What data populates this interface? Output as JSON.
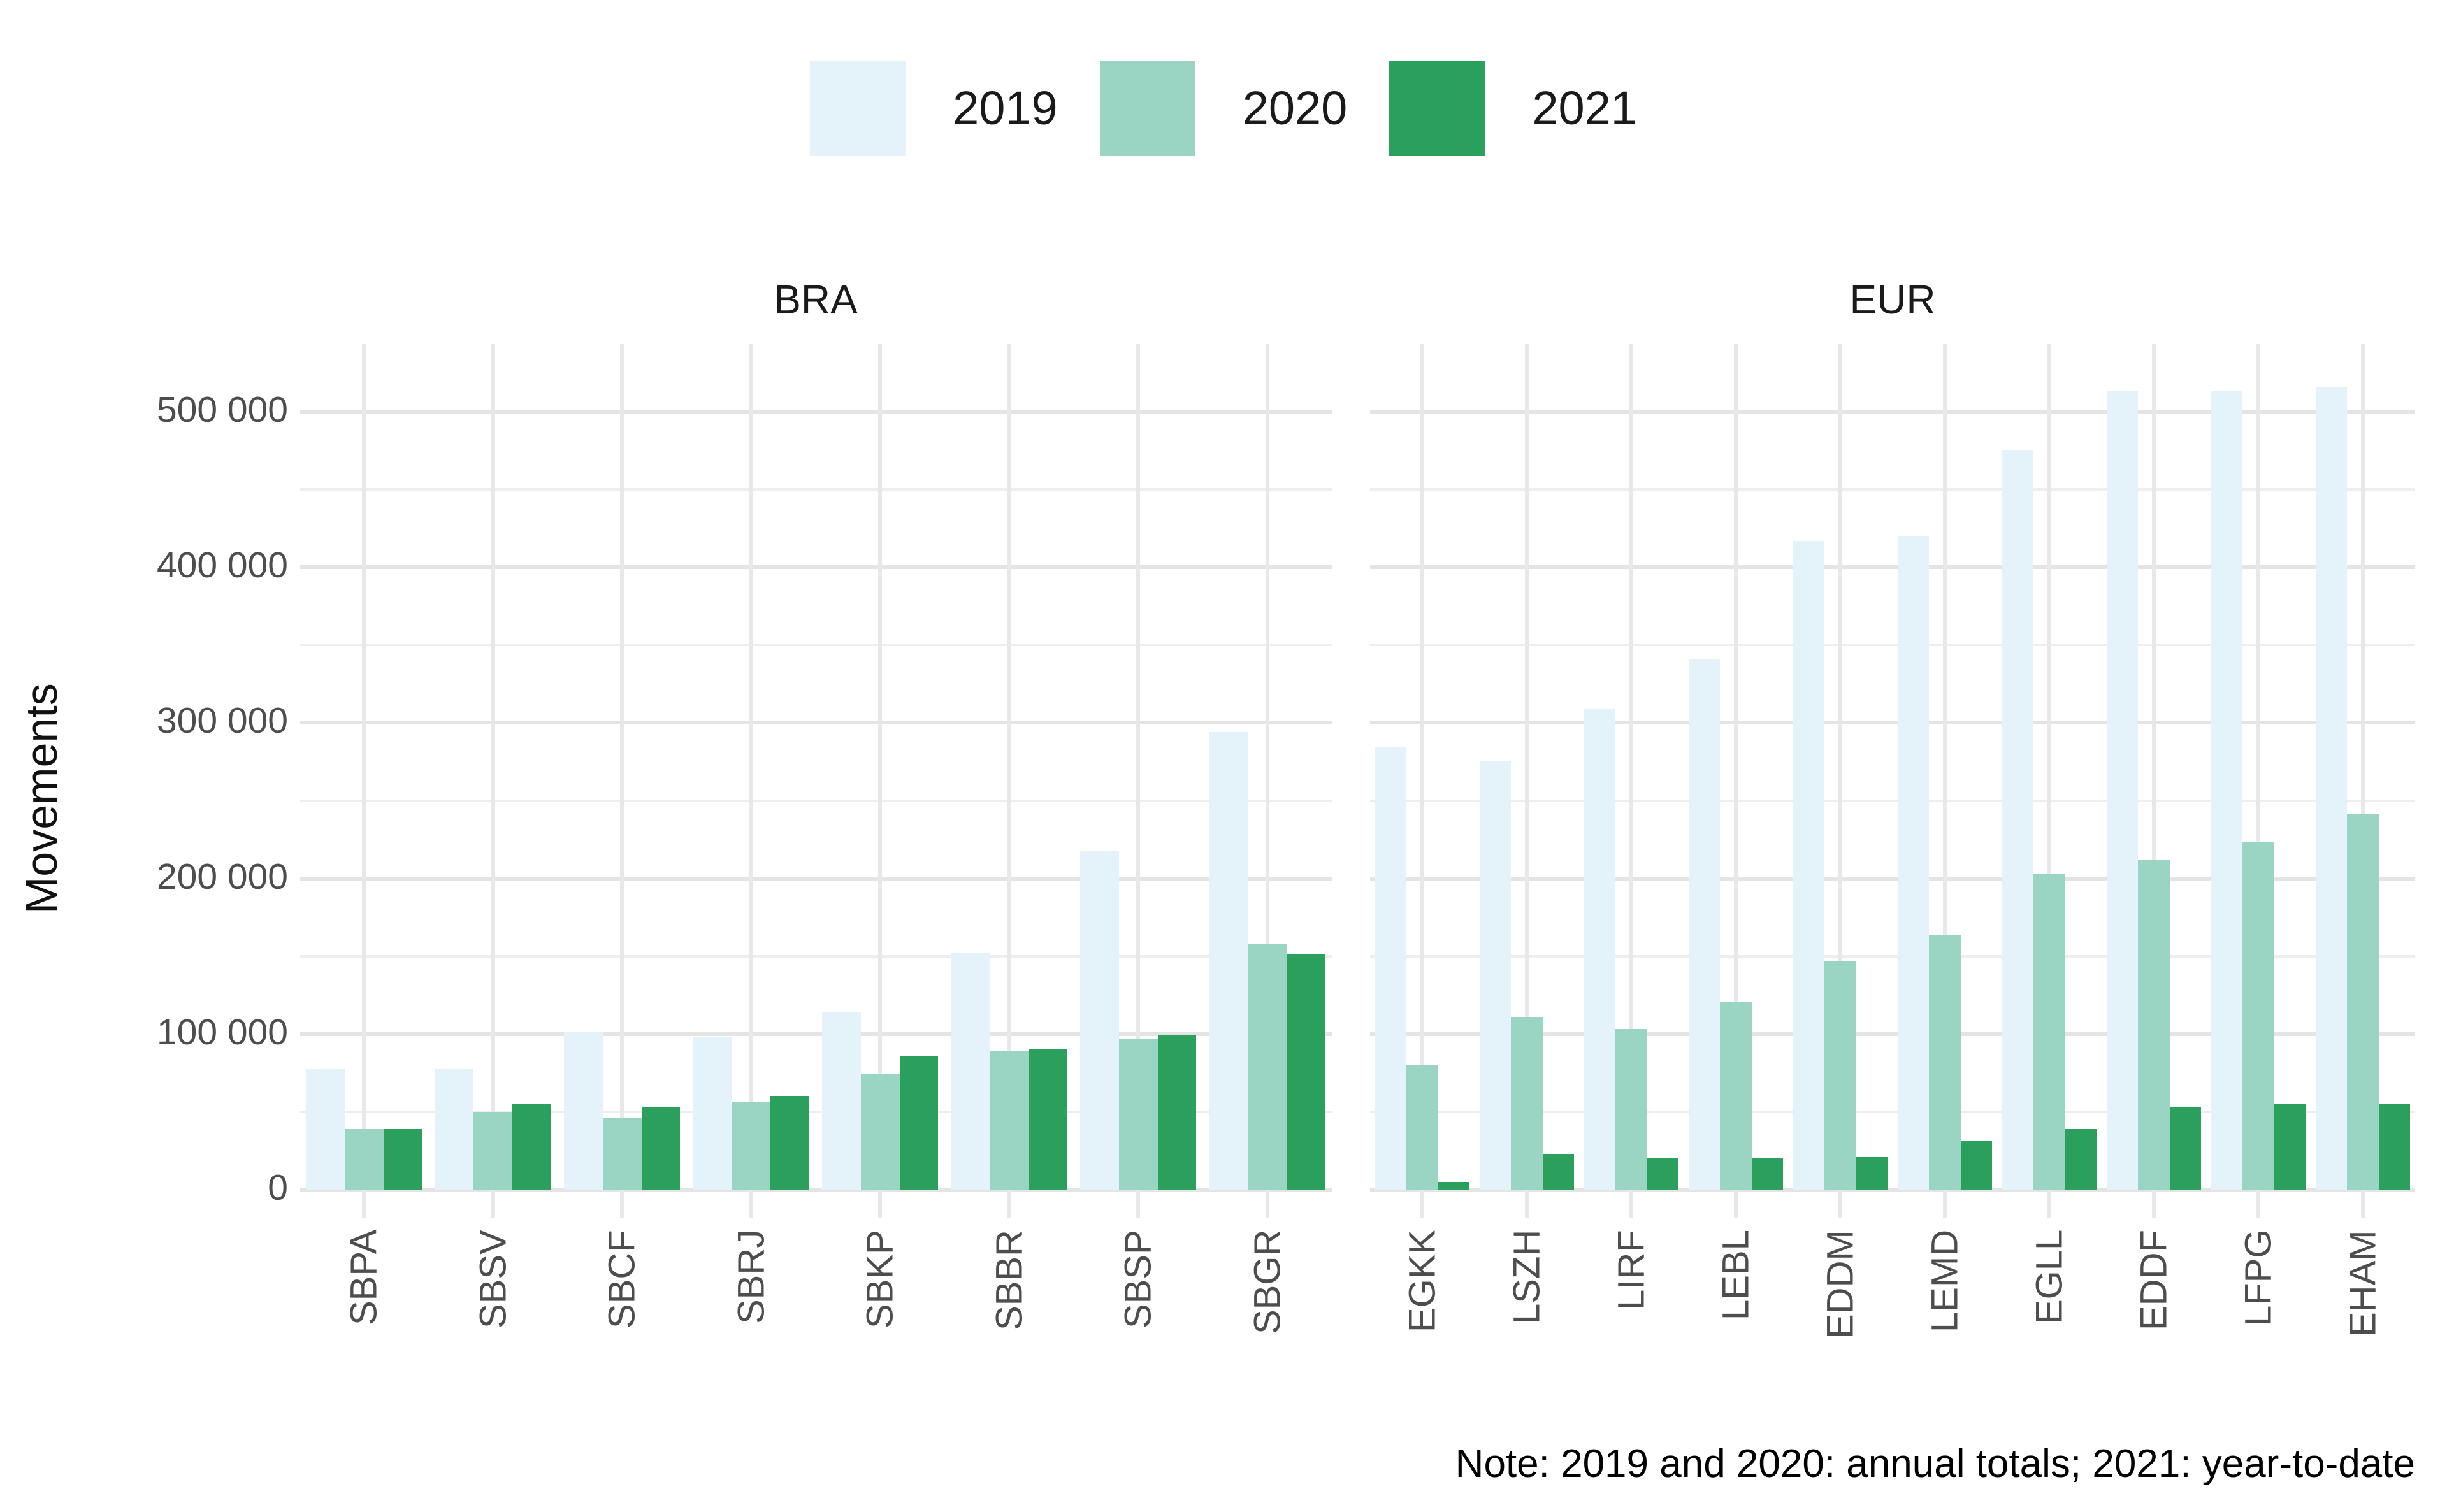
{
  "chart_data": {
    "type": "bar",
    "ylabel": "Movements",
    "note": "Note: 2019 and 2020: annual totals; 2021: year-to-date",
    "legend": [
      {
        "label": "2019",
        "color": "#e4f2f9"
      },
      {
        "label": "2020",
        "color": "#9ad5c4"
      },
      {
        "label": "2021",
        "color": "#2aa05c"
      }
    ],
    "yticks": [
      {
        "value": 0,
        "label": "0"
      },
      {
        "value": 100000,
        "label": "100 000"
      },
      {
        "value": 200000,
        "label": "200 000"
      },
      {
        "value": 300000,
        "label": "300 000"
      },
      {
        "value": 400000,
        "label": "400 000"
      },
      {
        "value": 500000,
        "label": "500 000"
      }
    ],
    "ylim": [
      0,
      543000
    ],
    "grid": {
      "major_every": 100000,
      "minor_every": 50000,
      "vertical": "category-centers"
    },
    "legend_position": "top-center",
    "facets": [
      {
        "label": "BRA",
        "categories": [
          "SBPA",
          "SBSV",
          "SBCF",
          "SBRJ",
          "SBKP",
          "SBBR",
          "SBSP",
          "SBGR"
        ],
        "series": [
          {
            "name": "2019",
            "values": [
              78000,
              78000,
              101000,
              98000,
              114000,
              152000,
              218000,
              294000
            ]
          },
          {
            "name": "2020",
            "values": [
              39000,
              50000,
              46000,
              56000,
              74000,
              89000,
              97000,
              158000
            ]
          },
          {
            "name": "2021",
            "values": [
              39000,
              55000,
              53000,
              60000,
              86000,
              90000,
              99000,
              151000
            ]
          }
        ]
      },
      {
        "label": "EUR",
        "categories": [
          "EGKK",
          "LSZH",
          "LIRF",
          "LEBL",
          "EDDM",
          "LEMD",
          "EGLL",
          "EDDF",
          "LFPG",
          "EHAM"
        ],
        "series": [
          {
            "name": "2019",
            "values": [
              284000,
              275000,
              309000,
              341000,
              417000,
              420000,
              475000,
              513000,
              513000,
              516000
            ]
          },
          {
            "name": "2020",
            "values": [
              80000,
              111000,
              103000,
              121000,
              147000,
              164000,
              203000,
              212000,
              223000,
              241000
            ]
          },
          {
            "name": "2021",
            "values": [
              5000,
              23000,
              20000,
              20000,
              21000,
              31000,
              39000,
              53000,
              55000,
              55000
            ]
          }
        ]
      }
    ]
  }
}
